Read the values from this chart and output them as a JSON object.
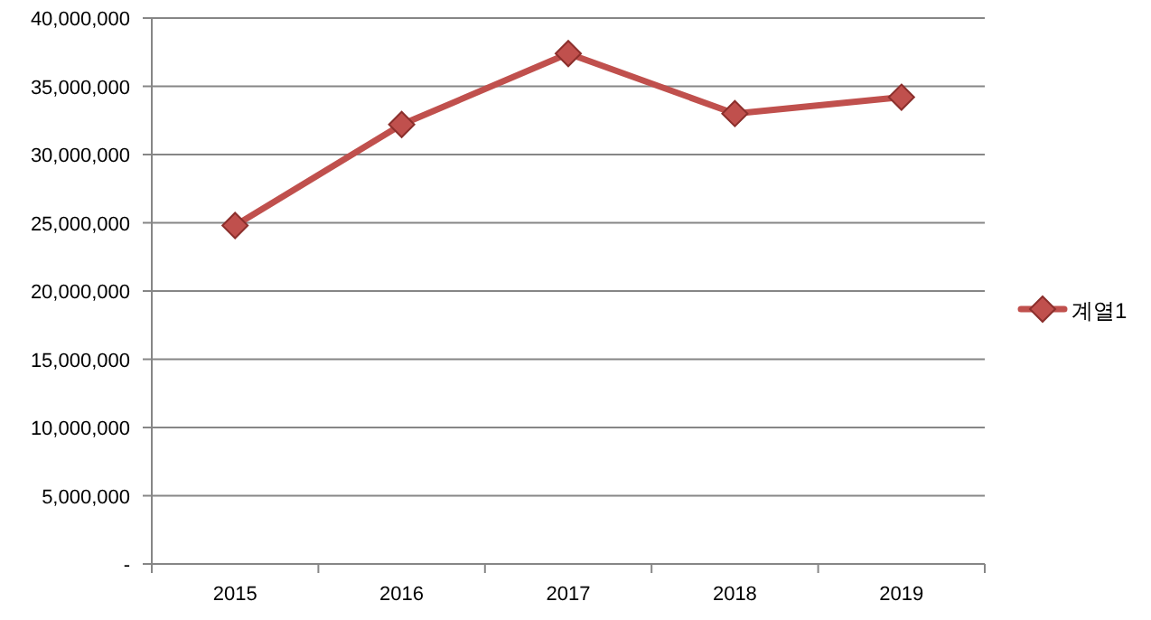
{
  "chart_data": {
    "type": "line",
    "categories": [
      "2015",
      "2016",
      "2017",
      "2018",
      "2019"
    ],
    "series": [
      {
        "name": "계열1",
        "color": "#c0504d",
        "values": [
          24800000,
          32200000,
          37400000,
          33000000,
          34200000
        ]
      }
    ],
    "ylim": [
      0,
      40000000
    ],
    "yticks": [
      {
        "value": 0,
        "label": "-"
      },
      {
        "value": 5000000,
        "label": "5,000,000"
      },
      {
        "value": 10000000,
        "label": "10,000,000"
      },
      {
        "value": 15000000,
        "label": "15,000,000"
      },
      {
        "value": 20000000,
        "label": "20,000,000"
      },
      {
        "value": 25000000,
        "label": "25,000,000"
      },
      {
        "value": 30000000,
        "label": "30,000,000"
      },
      {
        "value": 35000000,
        "label": "35,000,000"
      },
      {
        "value": 40000000,
        "label": "40,000,000"
      }
    ],
    "grid": "y",
    "legend": "right",
    "marker": "diamond",
    "line_style": "solid"
  }
}
